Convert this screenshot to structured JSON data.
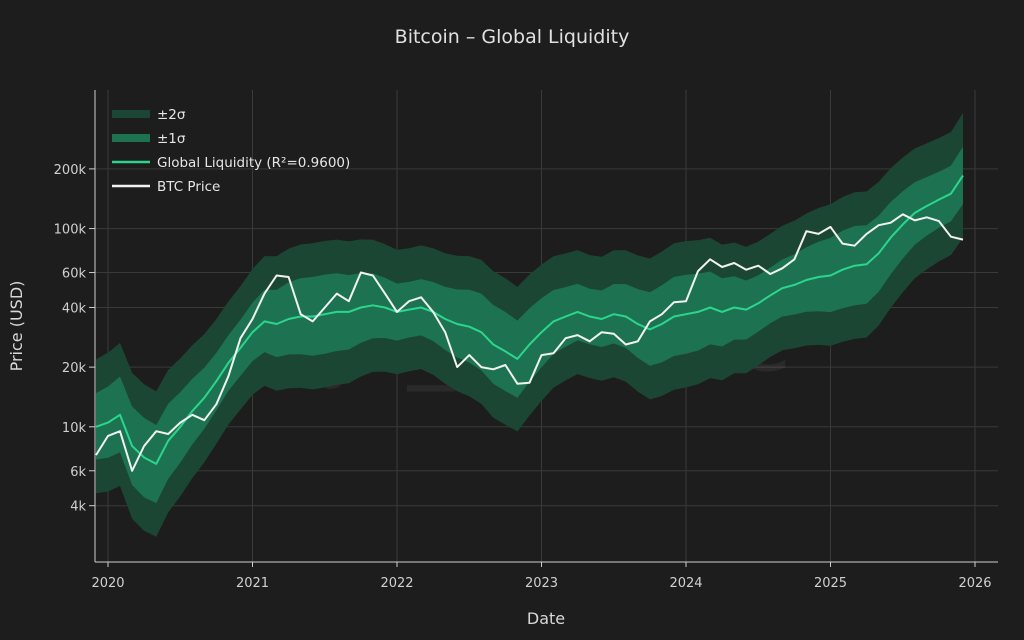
{
  "chart_data": {
    "type": "line",
    "title": "Bitcoin – Global Liquidity",
    "xlabel": "Date",
    "ylabel": "Price (USD)",
    "watermark": "jv_finance",
    "y_scale": "log",
    "ylim": [
      2080,
      500000
    ],
    "xlim": [
      "2019-11",
      "2026-02"
    ],
    "x_ticks": [
      "2020",
      "2021",
      "2022",
      "2023",
      "2024",
      "2025",
      "2026"
    ],
    "y_ticks": [
      {
        "value": 4000,
        "label": "4k"
      },
      {
        "value": 6000,
        "label": "6k"
      },
      {
        "value": 10000,
        "label": "10k"
      },
      {
        "value": 20000,
        "label": "20k"
      },
      {
        "value": 40000,
        "label": "40k"
      },
      {
        "value": 60000,
        "label": "60k"
      },
      {
        "value": 100000,
        "label": "100k"
      },
      {
        "value": 200000,
        "label": "200k"
      }
    ],
    "grid": true,
    "legend_position": "top-left",
    "colors": {
      "background": "#1d1d1d",
      "band_2sigma": "#1c4634",
      "band_1sigma": "#1d7351",
      "liquidity": "#2bd68c",
      "btc": "#f2f2f2",
      "grid": "#3a3a3a"
    },
    "band_sigma_log10": 0.17,
    "legend": [
      "±2σ",
      "±1σ",
      "Global Liquidity (R²=0.9600)",
      "BTC Price"
    ],
    "x": [
      "2019-12",
      "2020-01",
      "2020-02",
      "2020-03",
      "2020-04",
      "2020-05",
      "2020-06",
      "2020-07",
      "2020-08",
      "2020-09",
      "2020-10",
      "2020-11",
      "2020-12",
      "2021-01",
      "2021-02",
      "2021-03",
      "2021-04",
      "2021-05",
      "2021-06",
      "2021-07",
      "2021-08",
      "2021-09",
      "2021-10",
      "2021-11",
      "2021-12",
      "2022-01",
      "2022-02",
      "2022-03",
      "2022-04",
      "2022-05",
      "2022-06",
      "2022-07",
      "2022-08",
      "2022-09",
      "2022-10",
      "2022-11",
      "2022-12",
      "2023-01",
      "2023-02",
      "2023-03",
      "2023-04",
      "2023-05",
      "2023-06",
      "2023-07",
      "2023-08",
      "2023-09",
      "2023-10",
      "2023-11",
      "2023-12",
      "2024-01",
      "2024-02",
      "2024-03",
      "2024-04",
      "2024-05",
      "2024-06",
      "2024-07",
      "2024-08",
      "2024-09",
      "2024-10",
      "2024-11",
      "2024-12",
      "2025-01",
      "2025-02",
      "2025-03",
      "2025-04",
      "2025-05",
      "2025-06",
      "2025-07",
      "2025-08",
      "2025-09",
      "2025-10",
      "2025-11",
      "2025-12"
    ],
    "series": [
      {
        "name": "Global Liquidity (R²=0.9600)",
        "values": [
          10000,
          10500,
          11500,
          8000,
          7000,
          6500,
          8500,
          10000,
          12000,
          14000,
          17000,
          21000,
          25000,
          30000,
          34000,
          33000,
          35000,
          36000,
          36000,
          37000,
          38000,
          38000,
          40000,
          41000,
          40000,
          38000,
          39000,
          40000,
          38000,
          35000,
          33000,
          32000,
          30000,
          26000,
          24000,
          22000,
          26000,
          30000,
          34000,
          36000,
          38000,
          36000,
          35000,
          37000,
          36000,
          33000,
          31000,
          33000,
          36000,
          37000,
          38000,
          40000,
          38000,
          40000,
          39000,
          42000,
          46000,
          50000,
          52000,
          55000,
          57000,
          58000,
          62000,
          65000,
          66000,
          75000,
          90000,
          105000,
          120000,
          130000,
          140000,
          150000,
          185000
        ]
      },
      {
        "name": "BTC Price",
        "values": [
          7200,
          9000,
          9500,
          6000,
          8000,
          9500,
          9200,
          10500,
          11500,
          10800,
          13000,
          18000,
          28000,
          35000,
          47000,
          58000,
          57000,
          37000,
          34000,
          40000,
          47000,
          43000,
          60000,
          58000,
          47000,
          38000,
          43000,
          45000,
          38000,
          30000,
          20000,
          23000,
          20000,
          19500,
          20500,
          16500,
          16700,
          23000,
          23500,
          28000,
          29000,
          27000,
          30000,
          29500,
          26000,
          27000,
          34000,
          37000,
          42500,
          43000,
          61000,
          70000,
          64000,
          67000,
          62000,
          65000,
          59000,
          63000,
          70000,
          97000,
          94000,
          102000,
          84000,
          82000,
          94000,
          104000,
          107000,
          118000,
          110000,
          114000,
          109000,
          91000,
          88000
        ]
      }
    ]
  }
}
